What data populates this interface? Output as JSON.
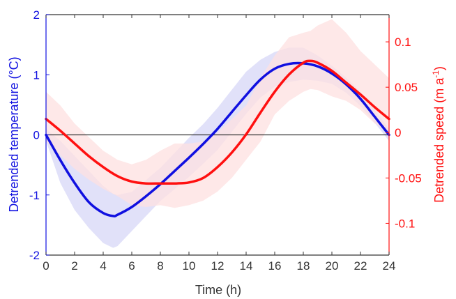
{
  "chart_data": {
    "type": "line",
    "title": "",
    "xlabel": "Time (h)",
    "ylabel_left": "Detrended temperature (°C)",
    "ylabel_right": "Detrended speed (m a⁻¹)",
    "xlim": [
      0,
      24
    ],
    "ylim_left": [
      -2,
      2
    ],
    "ylim_right": [
      -0.135,
      0.13
    ],
    "x_ticks": [
      "0",
      "2",
      "4",
      "6",
      "8",
      "10",
      "12",
      "14",
      "16",
      "18",
      "20",
      "22",
      "24"
    ],
    "y_left_ticks": [
      "-2",
      "-1",
      "0",
      "1",
      "2"
    ],
    "y_right_ticks": [
      "-0.1",
      "-0.05",
      "0",
      "0.05",
      "0.1"
    ],
    "grid": false,
    "reference_line": 0,
    "colors": {
      "temperature": "#1010e0",
      "speed": "#ff1010",
      "zero_line": "#333333"
    },
    "series": [
      {
        "key": "temperature",
        "axis": "left",
        "x": [
          0,
          1,
          2,
          3,
          4,
          4.7,
          5,
          6,
          7,
          8,
          9,
          10,
          11,
          12,
          13,
          14,
          15,
          16,
          17,
          18,
          19,
          20,
          21,
          22,
          23,
          24
        ],
        "y": [
          0,
          -0.42,
          -0.8,
          -1.12,
          -1.3,
          -1.35,
          -1.33,
          -1.2,
          -1.02,
          -0.82,
          -0.6,
          -0.38,
          -0.15,
          0.1,
          0.38,
          0.66,
          0.92,
          1.1,
          1.18,
          1.19,
          1.14,
          1.02,
          0.84,
          0.6,
          0.3,
          0
        ],
        "band_upper": [
          0.1,
          -0.1,
          -0.35,
          -0.6,
          -0.85,
          -0.98,
          -1.0,
          -0.95,
          -0.75,
          -0.55,
          -0.3,
          -0.05,
          0.18,
          0.45,
          0.75,
          1.05,
          1.25,
          1.38,
          1.45,
          1.45,
          1.32,
          1.15,
          0.95,
          0.72,
          0.42,
          0.1
        ],
        "band_lower": [
          -0.1,
          -0.8,
          -1.25,
          -1.55,
          -1.8,
          -1.88,
          -1.85,
          -1.6,
          -1.35,
          -1.1,
          -0.9,
          -0.7,
          -0.48,
          -0.25,
          0.05,
          0.35,
          0.62,
          0.8,
          0.88,
          0.92,
          0.9,
          0.85,
          0.7,
          0.48,
          0.2,
          -0.1
        ]
      },
      {
        "key": "speed",
        "axis": "right",
        "x": [
          0,
          1,
          2,
          3,
          4,
          5,
          6,
          7,
          8,
          9,
          10,
          11,
          12,
          13,
          14,
          15,
          16,
          17,
          18,
          18.5,
          19,
          20,
          21,
          22,
          23,
          24
        ],
        "y": [
          0.015,
          0.002,
          -0.012,
          -0.026,
          -0.038,
          -0.048,
          -0.054,
          -0.056,
          -0.056,
          -0.056,
          -0.055,
          -0.05,
          -0.038,
          -0.022,
          -0.002,
          0.022,
          0.045,
          0.064,
          0.077,
          0.079,
          0.077,
          0.068,
          0.055,
          0.042,
          0.028,
          0.015
        ],
        "band_upper": [
          0.045,
          0.03,
          0.01,
          -0.005,
          -0.02,
          -0.03,
          -0.035,
          -0.03,
          -0.02,
          -0.012,
          -0.012,
          -0.01,
          0.0,
          0.015,
          0.03,
          0.06,
          0.085,
          0.105,
          0.11,
          0.112,
          0.118,
          0.125,
          0.11,
          0.09,
          0.075,
          0.06
        ],
        "band_lower": [
          -0.01,
          -0.025,
          -0.04,
          -0.052,
          -0.062,
          -0.07,
          -0.08,
          -0.082,
          -0.08,
          -0.083,
          -0.08,
          -0.075,
          -0.065,
          -0.05,
          -0.03,
          -0.01,
          0.02,
          0.035,
          0.045,
          0.048,
          0.047,
          0.04,
          0.035,
          0.025,
          0.01,
          0.0
        ]
      }
    ]
  }
}
